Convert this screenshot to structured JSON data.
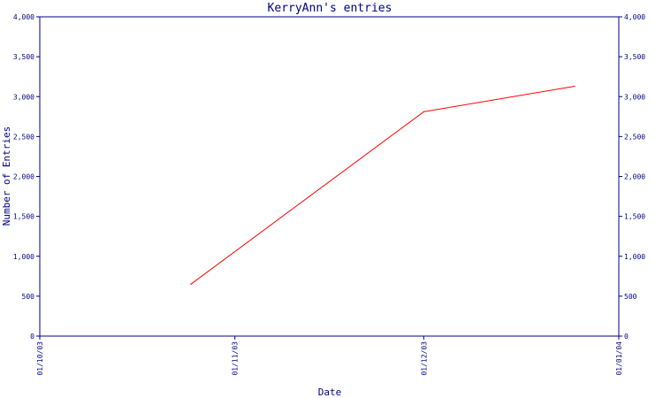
{
  "chart_data": {
    "type": "line",
    "title": "KerryAnn's entries",
    "xlabel": "Date",
    "ylabel": "Number of Entries",
    "x_ticks": [
      "01/10/03",
      "01/11/03",
      "01/12/03",
      "01/01/04"
    ],
    "y_ticks": [
      "0",
      "500",
      "1,000",
      "1,500",
      "2,000",
      "2,500",
      "3,000",
      "3,500",
      "4,000"
    ],
    "ylim": [
      0,
      4000
    ],
    "xlim": [
      "2003-10-01",
      "2004-01-01"
    ],
    "grid": false,
    "secondary_y_axis": true,
    "series": [
      {
        "x": [
          "2003-10-25",
          "2003-12-01",
          "2003-12-25"
        ],
        "values": [
          650,
          2810,
          3130
        ]
      }
    ],
    "colors": {
      "axis": "#000080",
      "series": "#ff0000",
      "background": "#ffffff"
    }
  }
}
